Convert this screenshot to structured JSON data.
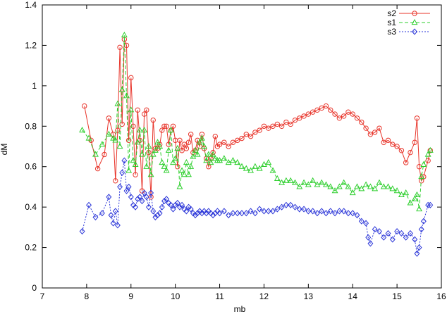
{
  "chart_data": {
    "type": "line",
    "title": "",
    "xlabel": "mb",
    "ylabel": "dM",
    "xlim": [
      7,
      16
    ],
    "ylim": [
      0,
      1.4
    ],
    "x_ticks": [
      7,
      8,
      9,
      10,
      11,
      12,
      13,
      14,
      15,
      16
    ],
    "x_tick_labels": [
      "7",
      "8",
      "9",
      "10",
      "11",
      "12",
      "13",
      "14",
      "15",
      "16"
    ],
    "y_ticks": [
      0,
      0.2,
      0.4,
      0.6,
      0.8,
      1,
      1.2,
      1.4
    ],
    "y_tick_labels": [
      "0",
      "0.2",
      "0.4",
      "0.6",
      "0.8",
      "1",
      "1.2",
      "1.4"
    ],
    "grid": false,
    "legend_position": "top-right",
    "series": [
      {
        "name": "s2",
        "color": "#e8342a",
        "marker": "circle",
        "dash": "",
        "points": [
          [
            7.95,
            0.9
          ],
          [
            8.1,
            0.73
          ],
          [
            8.25,
            0.59
          ],
          [
            8.4,
            0.66
          ],
          [
            8.5,
            0.84
          ],
          [
            8.6,
            0.76
          ],
          [
            8.65,
            0.53
          ],
          [
            8.7,
            0.78
          ],
          [
            8.75,
            1.19
          ],
          [
            8.8,
            0.81
          ],
          [
            8.85,
            1.23
          ],
          [
            8.9,
            1.2
          ],
          [
            8.95,
            0.73
          ],
          [
            9.0,
            1.04
          ],
          [
            9.05,
            0.8
          ],
          [
            9.1,
            0.56
          ],
          [
            9.15,
            0.88
          ],
          [
            9.2,
            0.73
          ],
          [
            9.25,
            0.48
          ],
          [
            9.3,
            0.86
          ],
          [
            9.35,
            0.88
          ],
          [
            9.4,
            0.67
          ],
          [
            9.45,
            0.45
          ],
          [
            9.5,
            0.83
          ],
          [
            9.55,
            0.69
          ],
          [
            9.6,
            0.69
          ],
          [
            9.65,
            0.71
          ],
          [
            9.7,
            0.78
          ],
          [
            9.75,
            0.8
          ],
          [
            9.8,
            0.8
          ],
          [
            9.85,
            0.71
          ],
          [
            9.9,
            0.78
          ],
          [
            9.95,
            0.8
          ],
          [
            10.0,
            0.73
          ],
          [
            10.05,
            0.6
          ],
          [
            10.1,
            0.73
          ],
          [
            10.15,
            0.68
          ],
          [
            10.2,
            0.71
          ],
          [
            10.25,
            0.69
          ],
          [
            10.3,
            0.72
          ],
          [
            10.35,
            0.76
          ],
          [
            10.4,
            0.67
          ],
          [
            10.45,
            0.68
          ],
          [
            10.5,
            0.73
          ],
          [
            10.55,
            0.7
          ],
          [
            10.6,
            0.76
          ],
          [
            10.65,
            0.69
          ],
          [
            10.7,
            0.64
          ],
          [
            10.75,
            0.6
          ],
          [
            10.8,
            0.64
          ],
          [
            10.85,
            0.67
          ],
          [
            10.9,
            0.75
          ],
          [
            10.95,
            0.7
          ],
          [
            11.0,
            0.71
          ],
          [
            11.1,
            0.72
          ],
          [
            11.2,
            0.7
          ],
          [
            11.3,
            0.72
          ],
          [
            11.4,
            0.73
          ],
          [
            11.5,
            0.74
          ],
          [
            11.6,
            0.76
          ],
          [
            11.7,
            0.75
          ],
          [
            11.8,
            0.77
          ],
          [
            11.9,
            0.78
          ],
          [
            12.0,
            0.8
          ],
          [
            12.1,
            0.79
          ],
          [
            12.2,
            0.8
          ],
          [
            12.3,
            0.81
          ],
          [
            12.4,
            0.8
          ],
          [
            12.5,
            0.82
          ],
          [
            12.6,
            0.81
          ],
          [
            12.7,
            0.83
          ],
          [
            12.8,
            0.84
          ],
          [
            12.9,
            0.85
          ],
          [
            13.0,
            0.86
          ],
          [
            13.1,
            0.87
          ],
          [
            13.2,
            0.88
          ],
          [
            13.3,
            0.89
          ],
          [
            13.4,
            0.9
          ],
          [
            13.5,
            0.88
          ],
          [
            13.6,
            0.86
          ],
          [
            13.7,
            0.84
          ],
          [
            13.8,
            0.85
          ],
          [
            13.9,
            0.87
          ],
          [
            14.0,
            0.86
          ],
          [
            14.1,
            0.84
          ],
          [
            14.2,
            0.82
          ],
          [
            14.3,
            0.79
          ],
          [
            14.4,
            0.76
          ],
          [
            14.5,
            0.77
          ],
          [
            14.6,
            0.79
          ],
          [
            14.7,
            0.72
          ],
          [
            14.8,
            0.73
          ],
          [
            14.9,
            0.71
          ],
          [
            15.0,
            0.7
          ],
          [
            15.1,
            0.68
          ],
          [
            15.2,
            0.62
          ],
          [
            15.3,
            0.67
          ],
          [
            15.4,
            0.72
          ],
          [
            15.45,
            0.84
          ],
          [
            15.5,
            0.6
          ],
          [
            15.55,
            0.53
          ],
          [
            15.6,
            0.55
          ],
          [
            15.7,
            0.63
          ],
          [
            15.75,
            0.68
          ]
        ]
      },
      {
        "name": "s1",
        "color": "#2ecf2e",
        "marker": "triangle",
        "dash": "5,3",
        "points": [
          [
            7.9,
            0.78
          ],
          [
            8.05,
            0.74
          ],
          [
            8.2,
            0.66
          ],
          [
            8.35,
            0.71
          ],
          [
            8.5,
            0.76
          ],
          [
            8.6,
            0.74
          ],
          [
            8.65,
            0.73
          ],
          [
            8.7,
            0.91
          ],
          [
            8.75,
            0.7
          ],
          [
            8.8,
            0.98
          ],
          [
            8.85,
            1.25
          ],
          [
            8.9,
            0.95
          ],
          [
            8.95,
            0.58
          ],
          [
            9.0,
            0.88
          ],
          [
            9.05,
            0.63
          ],
          [
            9.1,
            0.61
          ],
          [
            9.15,
            0.72
          ],
          [
            9.2,
            0.78
          ],
          [
            9.25,
            0.66
          ],
          [
            9.3,
            0.78
          ],
          [
            9.35,
            0.6
          ],
          [
            9.4,
            0.7
          ],
          [
            9.45,
            0.56
          ],
          [
            9.5,
            0.66
          ],
          [
            9.55,
            0.68
          ],
          [
            9.6,
            0.72
          ],
          [
            9.65,
            0.7
          ],
          [
            9.7,
            0.62
          ],
          [
            9.75,
            0.6
          ],
          [
            9.8,
            0.58
          ],
          [
            9.85,
            0.68
          ],
          [
            9.9,
            0.78
          ],
          [
            9.95,
            0.62
          ],
          [
            10.0,
            0.64
          ],
          [
            10.05,
            0.69
          ],
          [
            10.1,
            0.5
          ],
          [
            10.15,
            0.58
          ],
          [
            10.2,
            0.56
          ],
          [
            10.25,
            0.62
          ],
          [
            10.3,
            0.56
          ],
          [
            10.35,
            0.6
          ],
          [
            10.4,
            0.65
          ],
          [
            10.45,
            0.68
          ],
          [
            10.5,
            0.66
          ],
          [
            10.55,
            0.72
          ],
          [
            10.6,
            0.74
          ],
          [
            10.65,
            0.7
          ],
          [
            10.7,
            0.63
          ],
          [
            10.75,
            0.66
          ],
          [
            10.8,
            0.62
          ],
          [
            10.85,
            0.66
          ],
          [
            10.9,
            0.64
          ],
          [
            10.95,
            0.63
          ],
          [
            11.0,
            0.63
          ],
          [
            11.1,
            0.64
          ],
          [
            11.2,
            0.62
          ],
          [
            11.3,
            0.63
          ],
          [
            11.4,
            0.62
          ],
          [
            11.5,
            0.6
          ],
          [
            11.6,
            0.59
          ],
          [
            11.7,
            0.58
          ],
          [
            11.8,
            0.6
          ],
          [
            11.9,
            0.59
          ],
          [
            12.0,
            0.61
          ],
          [
            12.1,
            0.62
          ],
          [
            12.2,
            0.58
          ],
          [
            12.3,
            0.54
          ],
          [
            12.4,
            0.52
          ],
          [
            12.5,
            0.53
          ],
          [
            12.6,
            0.53
          ],
          [
            12.7,
            0.52
          ],
          [
            12.8,
            0.5
          ],
          [
            12.9,
            0.52
          ],
          [
            13.0,
            0.51
          ],
          [
            13.1,
            0.53
          ],
          [
            13.2,
            0.51
          ],
          [
            13.3,
            0.52
          ],
          [
            13.4,
            0.51
          ],
          [
            13.5,
            0.5
          ],
          [
            13.6,
            0.48
          ],
          [
            13.7,
            0.5
          ],
          [
            13.8,
            0.52
          ],
          [
            13.9,
            0.5
          ],
          [
            14.0,
            0.47
          ],
          [
            14.1,
            0.5
          ],
          [
            14.2,
            0.49
          ],
          [
            14.3,
            0.51
          ],
          [
            14.4,
            0.5
          ],
          [
            14.5,
            0.49
          ],
          [
            14.6,
            0.52
          ],
          [
            14.7,
            0.5
          ],
          [
            14.8,
            0.5
          ],
          [
            14.9,
            0.49
          ],
          [
            15.0,
            0.48
          ],
          [
            15.1,
            0.46
          ],
          [
            15.2,
            0.47
          ],
          [
            15.3,
            0.42
          ],
          [
            15.4,
            0.44
          ],
          [
            15.45,
            0.46
          ],
          [
            15.5,
            0.39
          ],
          [
            15.55,
            0.55
          ],
          [
            15.6,
            0.61
          ],
          [
            15.7,
            0.66
          ],
          [
            15.75,
            0.68
          ]
        ]
      },
      {
        "name": "s3",
        "color": "#2a35d8",
        "marker": "diamond",
        "dash": "2,2",
        "points": [
          [
            7.9,
            0.28
          ],
          [
            8.05,
            0.41
          ],
          [
            8.2,
            0.35
          ],
          [
            8.35,
            0.37
          ],
          [
            8.5,
            0.45
          ],
          [
            8.55,
            0.36
          ],
          [
            8.6,
            0.32
          ],
          [
            8.65,
            0.38
          ],
          [
            8.7,
            0.31
          ],
          [
            8.75,
            0.5
          ],
          [
            8.8,
            0.57
          ],
          [
            8.85,
            0.63
          ],
          [
            8.9,
            0.48
          ],
          [
            8.95,
            0.5
          ],
          [
            9.0,
            0.45
          ],
          [
            9.05,
            0.41
          ],
          [
            9.1,
            0.4
          ],
          [
            9.15,
            0.44
          ],
          [
            9.2,
            0.45
          ],
          [
            9.25,
            0.43
          ],
          [
            9.3,
            0.47
          ],
          [
            9.35,
            0.45
          ],
          [
            9.4,
            0.4
          ],
          [
            9.45,
            0.47
          ],
          [
            9.5,
            0.38
          ],
          [
            9.55,
            0.35
          ],
          [
            9.6,
            0.36
          ],
          [
            9.65,
            0.37
          ],
          [
            9.7,
            0.4
          ],
          [
            9.75,
            0.43
          ],
          [
            9.8,
            0.44
          ],
          [
            9.85,
            0.42
          ],
          [
            9.9,
            0.41
          ],
          [
            9.95,
            0.39
          ],
          [
            10.0,
            0.41
          ],
          [
            10.05,
            0.42
          ],
          [
            10.1,
            0.4
          ],
          [
            10.15,
            0.41
          ],
          [
            10.2,
            0.39
          ],
          [
            10.25,
            0.38
          ],
          [
            10.3,
            0.4
          ],
          [
            10.35,
            0.39
          ],
          [
            10.4,
            0.37
          ],
          [
            10.45,
            0.36
          ],
          [
            10.5,
            0.37
          ],
          [
            10.55,
            0.38
          ],
          [
            10.6,
            0.37
          ],
          [
            10.65,
            0.38
          ],
          [
            10.7,
            0.37
          ],
          [
            10.75,
            0.38
          ],
          [
            10.8,
            0.37
          ],
          [
            10.85,
            0.36
          ],
          [
            10.9,
            0.37
          ],
          [
            10.95,
            0.38
          ],
          [
            11.0,
            0.37
          ],
          [
            11.1,
            0.38
          ],
          [
            11.2,
            0.36
          ],
          [
            11.3,
            0.37
          ],
          [
            11.4,
            0.37
          ],
          [
            11.5,
            0.37
          ],
          [
            11.6,
            0.37
          ],
          [
            11.7,
            0.38
          ],
          [
            11.8,
            0.37
          ],
          [
            11.9,
            0.39
          ],
          [
            12.0,
            0.38
          ],
          [
            12.1,
            0.38
          ],
          [
            12.2,
            0.38
          ],
          [
            12.3,
            0.39
          ],
          [
            12.4,
            0.4
          ],
          [
            12.5,
            0.41
          ],
          [
            12.6,
            0.41
          ],
          [
            12.7,
            0.4
          ],
          [
            12.8,
            0.39
          ],
          [
            12.9,
            0.39
          ],
          [
            13.0,
            0.38
          ],
          [
            13.1,
            0.38
          ],
          [
            13.2,
            0.37
          ],
          [
            13.3,
            0.38
          ],
          [
            13.4,
            0.37
          ],
          [
            13.5,
            0.38
          ],
          [
            13.6,
            0.37
          ],
          [
            13.7,
            0.38
          ],
          [
            13.8,
            0.38
          ],
          [
            13.9,
            0.37
          ],
          [
            14.0,
            0.37
          ],
          [
            14.1,
            0.36
          ],
          [
            14.2,
            0.33
          ],
          [
            14.3,
            0.32
          ],
          [
            14.35,
            0.25
          ],
          [
            14.4,
            0.22
          ],
          [
            14.5,
            0.29
          ],
          [
            14.6,
            0.28
          ],
          [
            14.7,
            0.25
          ],
          [
            14.8,
            0.27
          ],
          [
            14.9,
            0.24
          ],
          [
            15.0,
            0.28
          ],
          [
            15.1,
            0.27
          ],
          [
            15.2,
            0.25
          ],
          [
            15.3,
            0.27
          ],
          [
            15.4,
            0.24
          ],
          [
            15.45,
            0.17
          ],
          [
            15.5,
            0.2
          ],
          [
            15.55,
            0.29
          ],
          [
            15.6,
            0.33
          ],
          [
            15.7,
            0.41
          ],
          [
            15.75,
            0.41
          ]
        ]
      }
    ]
  }
}
